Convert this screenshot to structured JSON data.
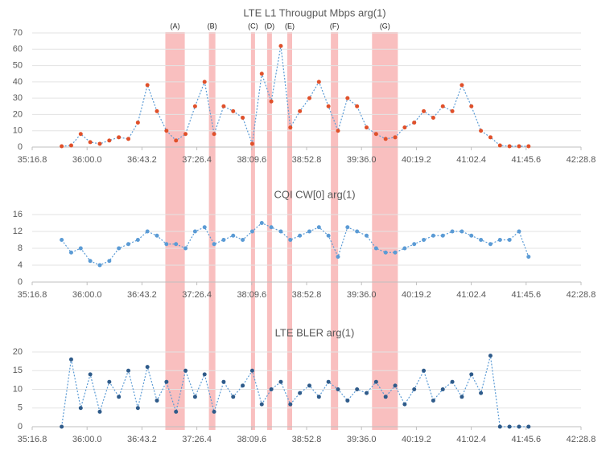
{
  "chart_data": [
    {
      "type": "line",
      "title": "LTE L1 Througput Mbps arg(1)",
      "x": [
        2140,
        2147.5,
        2155,
        2162.5,
        2170,
        2177.5,
        2185,
        2192.5,
        2200,
        2207.5,
        2215,
        2222.5,
        2230,
        2237.5,
        2245,
        2252.5,
        2260,
        2267.5,
        2275,
        2282.5,
        2290,
        2297.5,
        2305,
        2312.5,
        2320,
        2327.5,
        2335,
        2342.5,
        2350,
        2357.5,
        2365,
        2372.5,
        2380,
        2387.5,
        2395,
        2402.5,
        2410,
        2417.5,
        2425,
        2432.5,
        2440,
        2447.5,
        2455,
        2462.5,
        2470,
        2477.5,
        2485,
        2492.5,
        2500,
        2507.5
      ],
      "series": [
        {
          "name": "LTE L1 Througput Mbps arg(1)",
          "color": "#e0502a",
          "line_color": "#5b9bd5",
          "values": [
            0.5,
            1,
            8,
            3,
            2,
            4,
            6,
            5,
            15,
            38,
            22,
            10,
            4,
            8,
            25,
            40,
            8,
            25,
            22,
            18,
            2,
            45,
            28,
            62,
            12,
            22,
            30,
            40,
            25,
            10,
            30,
            25,
            12,
            8,
            5,
            6,
            12,
            15,
            22,
            18,
            25,
            22,
            38,
            25,
            10,
            6,
            1,
            0.5,
            0.5,
            0.5
          ]
        }
      ],
      "xlim": [
        2116.8,
        2548.8
      ],
      "xticks": [
        {
          "value": 2116.8,
          "label": "35:16.8"
        },
        {
          "value": 2160,
          "label": "36:00.0"
        },
        {
          "value": 2203.2,
          "label": "36:43.2"
        },
        {
          "value": 2246.4,
          "label": "37:26.4"
        },
        {
          "value": 2289.6,
          "label": "38:09.6"
        },
        {
          "value": 2332.8,
          "label": "38:52.8"
        },
        {
          "value": 2376,
          "label": "39:36.0"
        },
        {
          "value": 2419.2,
          "label": "40:19.2"
        },
        {
          "value": 2462.4,
          "label": "41:02.4"
        },
        {
          "value": 2505.6,
          "label": "41:45.6"
        },
        {
          "value": 2548.8,
          "label": "42:28.8"
        }
      ],
      "ylim": [
        0,
        70
      ],
      "yticks": [
        0,
        10,
        20,
        30,
        40,
        50,
        60,
        70
      ],
      "grid": true,
      "highlights": [
        {
          "label": "(A)",
          "start": 2221.6,
          "end": 2236.9
        },
        {
          "label": "(B)",
          "start": 2255.9,
          "end": 2261.0
        },
        {
          "label": "(C)",
          "start": 2289.0,
          "end": 2292.2
        },
        {
          "label": "(D)",
          "start": 2301.7,
          "end": 2305.5
        },
        {
          "label": "(E)",
          "start": 2317.6,
          "end": 2321.4
        },
        {
          "label": "(F)",
          "start": 2351.9,
          "end": 2357.6
        },
        {
          "label": "(G)",
          "start": 2384.3,
          "end": 2404.6
        }
      ],
      "highlight_color": "#f8b4b4"
    },
    {
      "type": "line",
      "title": "CQI CW[0] arg(1)",
      "x": [
        2140,
        2147.5,
        2155,
        2162.5,
        2170,
        2177.5,
        2185,
        2192.5,
        2200,
        2207.5,
        2215,
        2222.5,
        2230,
        2237.5,
        2245,
        2252.5,
        2260,
        2267.5,
        2275,
        2282.5,
        2290,
        2297.5,
        2305,
        2312.5,
        2320,
        2327.5,
        2335,
        2342.5,
        2350,
        2357.5,
        2365,
        2372.5,
        2380,
        2387.5,
        2395,
        2402.5,
        2410,
        2417.5,
        2425,
        2432.5,
        2440,
        2447.5,
        2455,
        2462.5,
        2470,
        2477.5,
        2485,
        2492.5,
        2500,
        2507.5
      ],
      "series": [
        {
          "name": "CQI CW[0] arg(1)",
          "color": "#5b9bd5",
          "line_color": "#5b9bd5",
          "values": [
            10,
            7,
            8,
            5,
            4,
            5,
            8,
            9,
            10,
            12,
            11,
            9,
            9,
            8,
            12,
            13,
            9,
            10,
            11,
            10,
            12,
            14,
            13,
            12,
            10,
            11,
            12,
            13,
            11,
            6,
            13,
            12,
            11,
            8,
            7,
            7,
            8,
            9,
            10,
            11,
            11,
            12,
            12,
            11,
            10,
            9,
            10,
            10,
            12,
            6
          ]
        }
      ],
      "xlim": [
        2116.8,
        2548.8
      ],
      "xticks": [
        {
          "value": 2116.8,
          "label": "35:16.8"
        },
        {
          "value": 2160,
          "label": "36:00.0"
        },
        {
          "value": 2203.2,
          "label": "36:43.2"
        },
        {
          "value": 2246.4,
          "label": "37:26.4"
        },
        {
          "value": 2289.6,
          "label": "38:09.6"
        },
        {
          "value": 2332.8,
          "label": "38:52.8"
        },
        {
          "value": 2376,
          "label": "39:36.0"
        },
        {
          "value": 2419.2,
          "label": "40:19.2"
        },
        {
          "value": 2462.4,
          "label": "41:02.4"
        },
        {
          "value": 2505.6,
          "label": "41:45.6"
        },
        {
          "value": 2548.8,
          "label": "42:28.8"
        }
      ],
      "ylim": [
        0,
        16
      ],
      "yticks": [
        0,
        4,
        8,
        12,
        16
      ],
      "grid": true
    },
    {
      "type": "line",
      "title": "LTE BLER arg(1)",
      "x": [
        2140,
        2147.5,
        2155,
        2162.5,
        2170,
        2177.5,
        2185,
        2192.5,
        2200,
        2207.5,
        2215,
        2222.5,
        2230,
        2237.5,
        2245,
        2252.5,
        2260,
        2267.5,
        2275,
        2282.5,
        2290,
        2297.5,
        2305,
        2312.5,
        2320,
        2327.5,
        2335,
        2342.5,
        2350,
        2357.5,
        2365,
        2372.5,
        2380,
        2387.5,
        2395,
        2402.5,
        2410,
        2417.5,
        2425,
        2432.5,
        2440,
        2447.5,
        2455,
        2462.5,
        2470,
        2477.5,
        2485,
        2492.5,
        2500,
        2507.5
      ],
      "series": [
        {
          "name": "LTE BLER arg(1)",
          "color": "#2f5b8a",
          "line_color": "#5b9bd5",
          "values": [
            0,
            18,
            5,
            14,
            4,
            12,
            8,
            15,
            5,
            16,
            7,
            12,
            4,
            15,
            8,
            14,
            4,
            12,
            8,
            11,
            15,
            6,
            10,
            12,
            6,
            9,
            11,
            8,
            12,
            10,
            7,
            10,
            9,
            12,
            8,
            11,
            6,
            10,
            15,
            7,
            10,
            12,
            8,
            14,
            9,
            19,
            0,
            0,
            0,
            0
          ]
        }
      ],
      "xlim": [
        2116.8,
        2548.8
      ],
      "xticks": [
        {
          "value": 2116.8,
          "label": "35:16.8"
        },
        {
          "value": 2160,
          "label": "36:00.0"
        },
        {
          "value": 2203.2,
          "label": "36:43.2"
        },
        {
          "value": 2246.4,
          "label": "37:26.4"
        },
        {
          "value": 2289.6,
          "label": "38:09.6"
        },
        {
          "value": 2332.8,
          "label": "38:52.8"
        },
        {
          "value": 2376,
          "label": "39:36.0"
        },
        {
          "value": 2419.2,
          "label": "40:19.2"
        },
        {
          "value": 2462.4,
          "label": "41:02.4"
        },
        {
          "value": 2505.6,
          "label": "41:45.6"
        },
        {
          "value": 2548.8,
          "label": "42:28.8"
        }
      ],
      "ylim": [
        0,
        20
      ],
      "yticks": [
        0,
        5,
        10,
        15,
        20
      ],
      "grid": true
    }
  ]
}
